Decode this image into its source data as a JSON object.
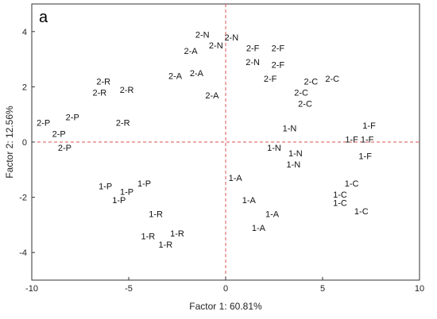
{
  "panel_label": "a",
  "chart_data": {
    "type": "scatter",
    "xlabel": "Factor 1: 60.81%",
    "ylabel": "Factor 2: 12.56%",
    "xlim": [
      -10,
      10
    ],
    "ylim": [
      -5,
      5
    ],
    "x_ticks": [
      -10,
      -5,
      0,
      5,
      10
    ],
    "y_ticks": [
      -4,
      -2,
      0,
      2,
      4
    ],
    "reference_lines": {
      "x": 0,
      "y": 0,
      "style": "dashed",
      "color": "#d9534f"
    },
    "grid": false,
    "points": [
      {
        "label": "2-N",
        "x": -1.2,
        "y": 3.9
      },
      {
        "label": "2-N",
        "x": 0.3,
        "y": 3.8
      },
      {
        "label": "2-N",
        "x": -0.5,
        "y": 3.5
      },
      {
        "label": "2-A",
        "x": -1.8,
        "y": 3.3
      },
      {
        "label": "2-F",
        "x": 1.4,
        "y": 3.4
      },
      {
        "label": "2-F",
        "x": 2.7,
        "y": 3.4
      },
      {
        "label": "2-N",
        "x": 1.4,
        "y": 2.9
      },
      {
        "label": "2-F",
        "x": 2.7,
        "y": 2.8
      },
      {
        "label": "2-A",
        "x": -2.6,
        "y": 2.4
      },
      {
        "label": "2-A",
        "x": -1.5,
        "y": 2.5
      },
      {
        "label": "2-F",
        "x": 2.3,
        "y": 2.3
      },
      {
        "label": "2-C",
        "x": 4.4,
        "y": 2.2
      },
      {
        "label": "2-C",
        "x": 5.5,
        "y": 2.3
      },
      {
        "label": "2-C",
        "x": 3.9,
        "y": 1.8
      },
      {
        "label": "2-C",
        "x": 4.1,
        "y": 1.4
      },
      {
        "label": "2-A",
        "x": -0.7,
        "y": 1.7
      },
      {
        "label": "2-R",
        "x": -6.3,
        "y": 2.2
      },
      {
        "label": "2-R",
        "x": -6.5,
        "y": 1.8
      },
      {
        "label": "2-R",
        "x": -5.1,
        "y": 1.9
      },
      {
        "label": "2-P",
        "x": -7.9,
        "y": 0.9
      },
      {
        "label": "2-P",
        "x": -9.4,
        "y": 0.7
      },
      {
        "label": "2-P",
        "x": -8.6,
        "y": 0.3
      },
      {
        "label": "2-P",
        "x": -8.3,
        "y": -0.2
      },
      {
        "label": "2-R",
        "x": -5.3,
        "y": 0.7
      },
      {
        "label": "1-N",
        "x": 3.3,
        "y": 0.5
      },
      {
        "label": "1-F",
        "x": 7.4,
        "y": 0.6
      },
      {
        "label": "1-F",
        "x": 6.5,
        "y": 0.1
      },
      {
        "label": "1-F",
        "x": 7.3,
        "y": 0.1
      },
      {
        "label": "1-N",
        "x": 2.5,
        "y": -0.2
      },
      {
        "label": "1-N",
        "x": 3.6,
        "y": -0.4
      },
      {
        "label": "1-F",
        "x": 7.2,
        "y": -0.5
      },
      {
        "label": "1-N",
        "x": 3.5,
        "y": -0.8
      },
      {
        "label": "1-P",
        "x": -6.2,
        "y": -1.6
      },
      {
        "label": "1-P",
        "x": -4.2,
        "y": -1.5
      },
      {
        "label": "1-P",
        "x": -5.1,
        "y": -1.8
      },
      {
        "label": "1-P",
        "x": -5.5,
        "y": -2.1
      },
      {
        "label": "1-A",
        "x": 0.5,
        "y": -1.3
      },
      {
        "label": "1-C",
        "x": 6.5,
        "y": -1.5
      },
      {
        "label": "1-C",
        "x": 5.9,
        "y": -1.9
      },
      {
        "label": "1-C",
        "x": 5.9,
        "y": -2.2
      },
      {
        "label": "1-A",
        "x": 1.2,
        "y": -2.1
      },
      {
        "label": "1-C",
        "x": 7.0,
        "y": -2.5
      },
      {
        "label": "1-R",
        "x": -3.6,
        "y": -2.6
      },
      {
        "label": "1-A",
        "x": 2.4,
        "y": -2.6
      },
      {
        "label": "1-R",
        "x": -2.5,
        "y": -3.3
      },
      {
        "label": "1-R",
        "x": -4.0,
        "y": -3.4
      },
      {
        "label": "1-R",
        "x": -3.1,
        "y": -3.7
      },
      {
        "label": "1-A",
        "x": 1.7,
        "y": -3.1
      }
    ]
  }
}
